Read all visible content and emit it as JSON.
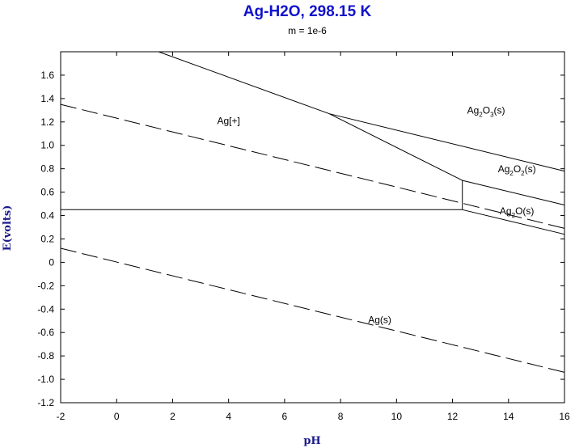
{
  "chart_data": {
    "type": "line",
    "title": "Ag-H2O, 298.15 K",
    "subtitle": "m = 1e-6",
    "xlabel": "pH",
    "ylabel": "E(volts)",
    "xlim": [
      -2,
      16
    ],
    "ylim": [
      -1.2,
      1.8
    ],
    "xticks": [
      -2,
      0,
      2,
      4,
      6,
      8,
      10,
      12,
      14,
      16
    ],
    "yticks": [
      -1.2,
      -1.0,
      -0.8,
      -0.6,
      -0.4,
      -0.2,
      0,
      0.2,
      0.4,
      0.6,
      0.8,
      1.0,
      1.2,
      1.4,
      1.6
    ],
    "xtick_labels": [
      "-2",
      "0",
      "2",
      "4",
      "6",
      "8",
      "10",
      "12",
      "14",
      "16"
    ],
    "ytick_labels": [
      "-1.2",
      "-1.0",
      "-0.8",
      "-0.6",
      "-0.4",
      "-0.2",
      "0",
      "0.2",
      "0.4",
      "0.6",
      "0.8",
      "1.0",
      "1.2",
      "1.4",
      "1.6"
    ],
    "grid": false,
    "series": [
      {
        "style": "solid",
        "x": [
          1.5,
          7.6
        ],
        "y": [
          1.8,
          1.27
        ]
      },
      {
        "style": "solid",
        "x": [
          7.6,
          16
        ],
        "y": [
          1.27,
          0.78
        ]
      },
      {
        "style": "solid",
        "x": [
          7.6,
          12.35
        ],
        "y": [
          1.27,
          0.7
        ]
      },
      {
        "style": "solid",
        "x": [
          12.35,
          16
        ],
        "y": [
          0.7,
          0.49
        ]
      },
      {
        "style": "solid",
        "x": [
          12.35,
          12.35
        ],
        "y": [
          0.45,
          0.7
        ]
      },
      {
        "style": "solid",
        "x": [
          -2,
          12.35
        ],
        "y": [
          0.45,
          0.45
        ]
      },
      {
        "style": "solid",
        "x": [
          12.35,
          16
        ],
        "y": [
          0.45,
          0.24
        ]
      },
      {
        "style": "dashed",
        "x": [
          -2,
          16
        ],
        "y": [
          1.35,
          0.29
        ]
      },
      {
        "style": "dashed",
        "x": [
          -2,
          16
        ],
        "y": [
          0.12,
          -0.94
        ]
      }
    ],
    "region_labels": [
      {
        "main": "Ag[+]",
        "x": 4.0,
        "y": 1.18
      },
      {
        "parts": [
          "Ag",
          "2",
          "O",
          "3",
          "(s)"
        ],
        "x": 13.2,
        "y": 1.27
      },
      {
        "parts": [
          "Ag",
          "2",
          "O",
          "2",
          "(s)"
        ],
        "x": 14.3,
        "y": 0.77
      },
      {
        "parts": [
          "Ag",
          "2",
          "O(s)"
        ],
        "x": 14.3,
        "y": 0.41
      },
      {
        "main": "Ag(s)",
        "x": 9.4,
        "y": -0.52
      }
    ]
  }
}
